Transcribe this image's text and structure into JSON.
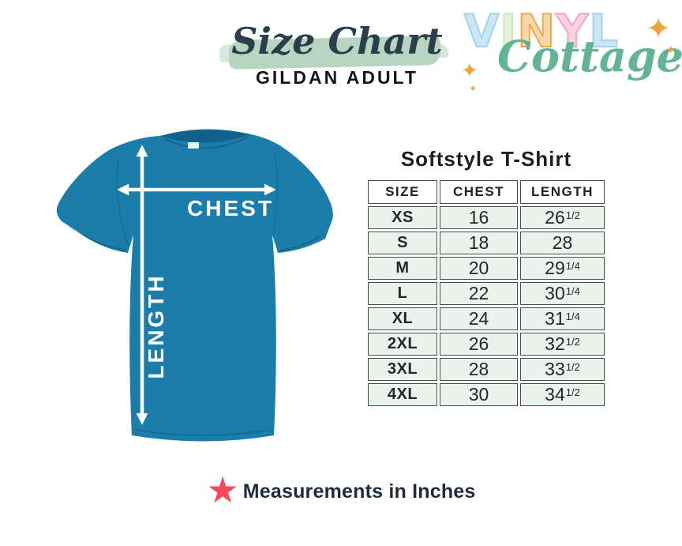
{
  "header": {
    "title": "Size Chart",
    "subtitle": "GILDAN ADULT",
    "brush_color": "#b7d5c0",
    "title_color": "#2c3e4a",
    "subtitle_color": "#141618"
  },
  "logo": {
    "word": "VINYL",
    "letters": [
      {
        "ch": "V",
        "fill": "#cbe7f6",
        "outline": "#9fd4ec"
      },
      {
        "ch": "I",
        "fill": "#e6f2dc",
        "outline": "#cde7c0"
      },
      {
        "ch": "N",
        "fill": "#f8d8a8",
        "outline": "#efa94a"
      },
      {
        "ch": "Y",
        "fill": "#f9d2e5",
        "outline": "#f2a6cc"
      },
      {
        "ch": "L",
        "fill": "#cbe7f6",
        "outline": "#a3d6ee"
      }
    ],
    "script_word": "Cottage",
    "script_color": "#63b495",
    "sparkle_color": "#f0a43b",
    "sparkle_glyph": "✦"
  },
  "tshirt": {
    "chest_label": "CHEST",
    "length_label": "LENGTH",
    "shirt_color": "#1b7da9",
    "shirt_color_dark": "#11618d",
    "arrow_color": "#ffffff"
  },
  "table": {
    "title": "Softstyle T-Shirt",
    "columns": [
      "SIZE",
      "CHEST",
      "LENGTH"
    ],
    "rows": [
      {
        "size": "XS",
        "chest": "16",
        "length": "26",
        "frac": "1/2"
      },
      {
        "size": "S",
        "chest": "18",
        "length": "28",
        "frac": ""
      },
      {
        "size": "M",
        "chest": "20",
        "length": "29",
        "frac": "1/4"
      },
      {
        "size": "L",
        "chest": "22",
        "length": "30",
        "frac": "1/4"
      },
      {
        "size": "XL",
        "chest": "24",
        "length": "31",
        "frac": "1/4"
      },
      {
        "size": "2XL",
        "chest": "26",
        "length": "32",
        "frac": "1/2"
      },
      {
        "size": "3XL",
        "chest": "28",
        "length": "33",
        "frac": "1/2"
      },
      {
        "size": "4XL",
        "chest": "30",
        "length": "34",
        "frac": "1/2"
      }
    ],
    "cell_bg": "#e9f2ec",
    "header_bg": "#ffffff",
    "border_color": "#454d48"
  },
  "footer": {
    "note": "Measurements in Inches",
    "star_glyph": "★",
    "star_color": "#f8495b",
    "text_color": "#1e2c3e"
  },
  "chart_data": {
    "type": "table",
    "title": "Softstyle T-Shirt",
    "subtitle": "GILDAN ADULT",
    "columns": [
      "SIZE",
      "CHEST",
      "LENGTH"
    ],
    "units": "inches",
    "rows": [
      [
        "XS",
        16,
        26.5
      ],
      [
        "S",
        18,
        28
      ],
      [
        "M",
        20,
        29.25
      ],
      [
        "L",
        22,
        30.25
      ],
      [
        "XL",
        24,
        31.25
      ],
      [
        "2XL",
        26,
        32.5
      ],
      [
        "3XL",
        28,
        33.5
      ],
      [
        "4XL",
        30,
        34.5
      ]
    ],
    "note": "Measurements in Inches"
  }
}
